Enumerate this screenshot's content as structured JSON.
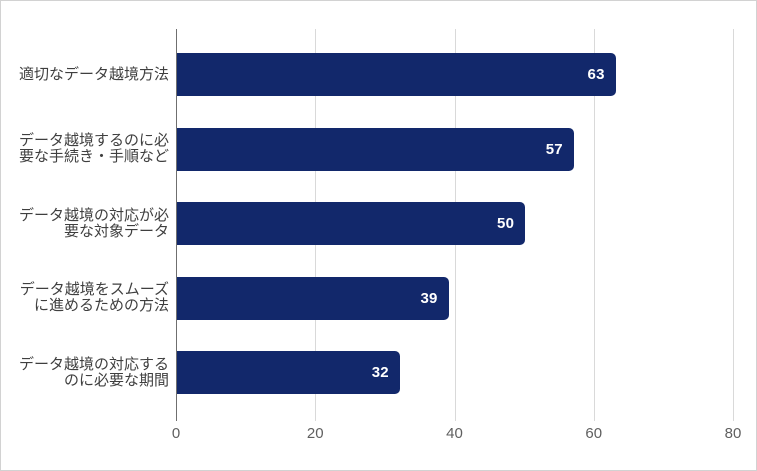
{
  "chart_data": {
    "type": "bar",
    "orientation": "horizontal",
    "title": "",
    "xlabel": "",
    "ylabel": "",
    "categories": [
      "適切なデータ越境方法",
      "データ越境するのに必要な手続き・手順など",
      "データ越境の対応が必要な対象データ",
      "データ越境をスムーズに進めるための方法",
      "データ越境の対応するのに必要な期間"
    ],
    "values": [
      63,
      57,
      50,
      39,
      32
    ],
    "value_labels": [
      "63",
      "57",
      "50",
      "39",
      "32"
    ],
    "xlim": [
      0,
      80
    ],
    "xticks": [
      0,
      20,
      40,
      60,
      80
    ],
    "grid": true,
    "legend": "none",
    "colors": {
      "bar": "#12286B",
      "value_label": "#ffffff",
      "gridline": "#d9d9d9",
      "axis_line": "#6f6f6f",
      "tick_label": "#5f5f5f",
      "category_label": "#3f3f3f",
      "border": "#d2d2d2",
      "background": "#ffffff"
    }
  }
}
